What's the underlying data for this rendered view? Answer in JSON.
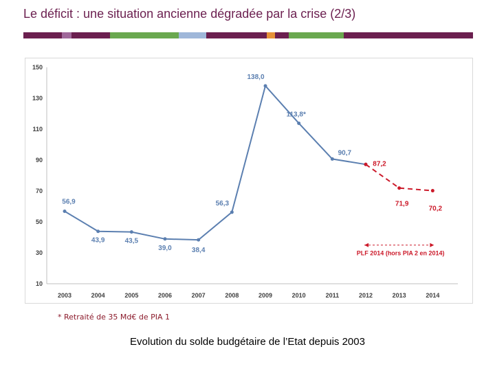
{
  "slide": {
    "title": "Le déficit : une situation ancienne dégradée par la crise (2/3)",
    "footnote": "* Retraité de 35 Md€ de PIA 1",
    "caption": "Evolution du solde budgétaire de l’Etat depuis 2003"
  },
  "colors": {
    "title": "#6b1f4f",
    "bar_purple": "#6b1f4f",
    "bar_lilac": "#a0689a",
    "bar_green": "#6aa84f",
    "bar_blue": "#9fb7d9",
    "bar_orange": "#e69138",
    "series_blue": "#5b7fb0",
    "series_red": "#cc1a2a"
  },
  "chart_data": {
    "type": "line",
    "x": [
      "2003",
      "2004",
      "2005",
      "2006",
      "2007",
      "2008",
      "2009",
      "2010",
      "2011",
      "2012",
      "2013",
      "2014"
    ],
    "ylim": [
      10,
      150
    ],
    "yticks": [
      "10",
      "30",
      "50",
      "70",
      "90",
      "110",
      "130",
      "150"
    ],
    "grid": false,
    "series": [
      {
        "values": [
          56.9,
          43.9,
          43.5,
          39.0,
          38.4,
          56.3,
          138.0,
          113.8,
          90.7,
          87.2,
          null,
          null
        ],
        "labels": [
          "56,9",
          "43,9",
          "43,5",
          "39,0",
          "38,4",
          "56,3",
          "138,0",
          "113,8*",
          "90,7",
          "",
          "",
          ""
        ],
        "color": "#5b7fb0",
        "style": "solid"
      },
      {
        "name": "PLF 2014 (hors PIA 2 en 2014)",
        "values": [
          null,
          null,
          null,
          null,
          null,
          null,
          null,
          null,
          null,
          87.2,
          71.9,
          70.2
        ],
        "labels": [
          "",
          "",
          "",
          "",
          "",
          "",
          "",
          "",
          "",
          "87,2",
          "71,9",
          "70,2"
        ],
        "color": "#cc1a2a",
        "style": "dashed"
      }
    ],
    "annotation": "PLF 2014 (hors PIA 2 en 2014)"
  }
}
